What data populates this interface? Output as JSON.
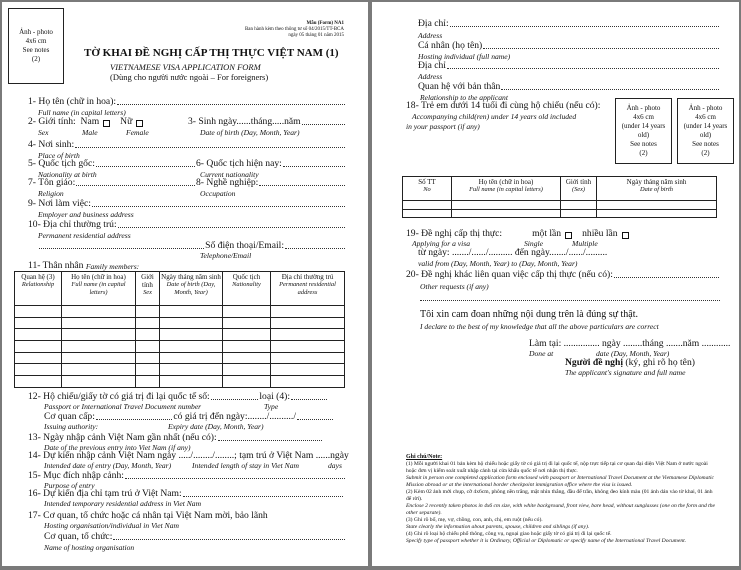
{
  "photo": {
    "l1": "Ảnh - photo",
    "l2": "4x6 cm",
    "l3": "See notes",
    "l4": "(2)"
  },
  "child_photo": {
    "l1": "Ảnh - photo",
    "l2": "4x6 cm",
    "l3": "(under 14 years",
    "l4": "old)",
    "l5": "See notes",
    "l6": "(2)"
  },
  "header": {
    "form": "Mẫu (Form) NA1",
    "issued": "Ban hành kèm theo thông tư số 04/2015/TT-BCA",
    "date": "ngày 05 tháng 01 năm 2015"
  },
  "title": {
    "vi": "TỜ KHAI ĐỀ NGHỊ CẤP THỊ THỰC VIỆT NAM (1)",
    "en": "VIETNAMESE VISA APPLICATION FORM",
    "sub": "(Dùng cho người nước ngoài – For foreigners)"
  },
  "f1": {
    "vi": "1- Họ tên (chữ in hoa):",
    "en": "Full name (in capital letters)"
  },
  "f2": {
    "vi": "2- Giới tính:",
    "male_vi": "Nam",
    "female_vi": "Nữ",
    "en": "Sex",
    "male_en": "Male",
    "female_en": "Female"
  },
  "f3": {
    "vi": "3- Sinh ngày......tháng.....năm",
    "en": "Date of birth (Day, Month, Year)"
  },
  "f4": {
    "vi": "4- Nơi sinh:",
    "en": "Place of birth"
  },
  "f5": {
    "vi": "5- Quốc tịch gốc:",
    "en": "Nationality at birth"
  },
  "f6": {
    "vi": "6- Quốc tịch hiện nay:",
    "en": "Current nationality"
  },
  "f7": {
    "vi": "7- Tôn giáo:",
    "en": "Religion"
  },
  "f8": {
    "vi": "8- Nghề nghiệp:",
    "en": "Occupation"
  },
  "f9": {
    "vi": "9- Nơi làm việc:",
    "en": "Employer and business address"
  },
  "f10": {
    "vi": "10- Địa chỉ thường trú:",
    "en": "Permanent residential address",
    "phone_vi": "Số điện thoại/Email:",
    "phone_en": "Telephone/Email"
  },
  "f11": {
    "vi": "11- Thân nhân",
    "en": "Family members:",
    "columns": [
      {
        "vi": "Quan hệ (3)",
        "en": "Relationship"
      },
      {
        "vi": "Họ tên (chữ in hoa)",
        "en": "Full name (in capital letters)"
      },
      {
        "vi": "Giới tính",
        "en": "Sex"
      },
      {
        "vi": "Ngày tháng năm sinh",
        "en": "Date of birth (Day, Month, Year)"
      },
      {
        "vi": "Quốc tịch",
        "en": "Nationality"
      },
      {
        "vi": "Địa chỉ thường trú",
        "en": "Permanent residential address"
      }
    ]
  },
  "f12": {
    "vi": "12- Hộ chiếu/giấy tờ có giá trị đi lại quốc tế số:",
    "type_vi": "loại (4):",
    "en": "Passport or International Travel Document number",
    "type_en": "Type",
    "auth_vi": "Cơ quan cấp:",
    "exp_vi": "có giá trị đến ngày:......../........../",
    "auth_en": "Issuing authority:",
    "exp_en": "Expiry date (Day, Month, Year)"
  },
  "f13": {
    "vi": "13- Ngày nhập cảnh Việt Nam gần nhất (nếu có):",
    "en": "Date of the previous entry into Viet Nam (if any)"
  },
  "f14": {
    "vi": "14- Dự kiến nhập cảnh Việt Nam ngày ...../......../........; tạm trú ở Việt Nam ......ngày",
    "en": "Intended date of entry (Day, Month, Year)",
    "stay_en": "Intended length of stay in Viet Nam",
    "days": "days"
  },
  "f15": {
    "vi": "15- Mục đích nhập cảnh:",
    "en": "Purpose of entry"
  },
  "f16": {
    "vi": "16- Dự kiến địa chỉ tạm trú ở Việt Nam:",
    "en": "Intended temporary residential address in Viet Nam"
  },
  "f17": {
    "vi": "17- Cơ quan, tổ chức hoặc cá nhân tại Việt Nam mời, bảo lãnh",
    "en": "Hosting organisation/individual in Viet Nam",
    "org_vi": "Cơ quan, tổ chức:",
    "org_en": "Name of hosting organisation",
    "addr_vi": "Địa chỉ:",
    "addr_en": "Address",
    "ind_vi": "Cá nhân (họ tên)",
    "ind_en": "Hosting individual (full name)",
    "addr2_vi": "Địa chỉ",
    "addr2_en": "Address",
    "rel_vi": "Quan hệ với bản thân",
    "rel_en": "Relationship to the applicant"
  },
  "f18": {
    "vi": "18- Trẻ em dưới 14 tuổi đi cùng hộ chiếu (nếu có):",
    "en1": "Accompanying child(ren) under 14 years old included",
    "en2": "in your passport (if any)",
    "columns": [
      {
        "vi": "Số TT",
        "en": "No"
      },
      {
        "vi": "Họ tên (chữ in hoa)",
        "en": "Full name (in capital letters)"
      },
      {
        "vi": "Giới tính",
        "en": "(Sex)"
      },
      {
        "vi": "Ngày tháng năm sinh",
        "en": "Date of birth"
      }
    ]
  },
  "f19": {
    "vi": "19- Đề nghị cấp thị thực:",
    "single_vi": "một lần",
    "multi_vi": "nhiều lần",
    "en": "Applying for a visa",
    "single_en": "Single",
    "multi_en": "Multiple",
    "from_vi": "từ ngày: ......./....../.......... đến ngày......./....../.........",
    "from_en": "valid from (Day, Month, Year) to (Day, Month, Year)"
  },
  "f20": {
    "vi": "20- Đề nghị khác liên quan việc cấp thị thực (nếu có):",
    "en": "Other requests (if any)"
  },
  "declare": {
    "vi": "Tôi xin cam đoan những nội dung trên là đúng sự thật.",
    "en": "I declare to the best of my knowledge that all the above particulars are correct"
  },
  "sign": {
    "place_vi": "Làm tại: ............... ngày ........tháng .......năm ............",
    "place_en": "Done at",
    "date_en": "date (Day, Month, Year)",
    "who_vi": "Người đề nghị",
    "who_note": "(ký, ghi rõ họ tên)",
    "who_en": "The applicant's signature and full name"
  },
  "notes": {
    "title": "Ghi chú/Note:",
    "n1": "(1) Mỗi người khai 01 bản kèm hộ chiếu hoặc giấy tờ có giá trị đi lại quốc tế, nộp trực tiếp tại cơ quan đại diện Việt Nam ở nước ngoài hoặc đơn vị kiểm soát xuất nhập cảnh tại cửa khẩu quốc tế nơi nhận thị thực.",
    "n1en": "Submit in person one completed application form enclosed with passport or International Travel Document at the Vietnamese Diplomatic Mission abroad or at the international border checkpoint immigration office where the visa is issued.",
    "n2": "(2) Kèm 02 ảnh mới chụp, cỡ 4x6cm, phông nền trắng, mặt nhìn thẳng, đầu để trần, không đeo kính màu (01 ảnh dán vào tờ khai, 01 ảnh để rời).",
    "n2en": "Enclose 2 recently taken photos in 4x6 cm size, with white background, front view, bare head, without sunglasses (one on the form and the other separate).",
    "n3": "(3) Ghi rõ bố, mẹ, vợ, chồng, con, anh, chị, em ruột (nếu có).",
    "n3en": "State clearly the information about parents, spouse, children and siblings (if any).",
    "n4": "(4) Ghi rõ loại hộ chiếu phổ thông, công vụ, ngoại giao hoặc giấy tờ có giá trị đi lại quốc tế.",
    "n4en": "Specify type of passport whether it is Ordinary, Official or Diplomatic or specify name of the International Travel Document."
  }
}
